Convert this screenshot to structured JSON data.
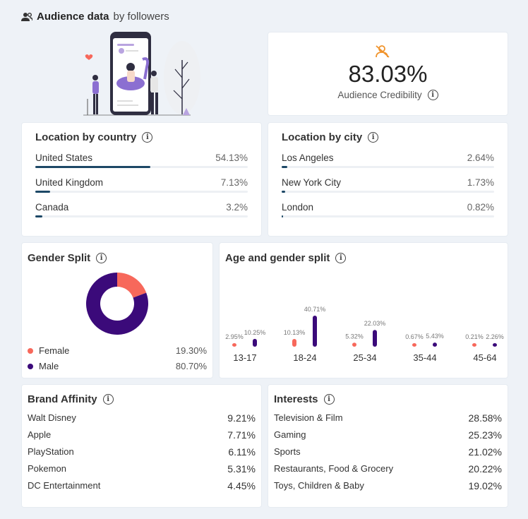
{
  "header": {
    "title": "Audience data",
    "subtitle": "by followers"
  },
  "credibility": {
    "value": "83.03%",
    "label": "Audience Credibility"
  },
  "location_country": {
    "title": "Location by country",
    "items": [
      {
        "label": "United States",
        "pct": "54.13%",
        "value": 54.13
      },
      {
        "label": "United Kingdom",
        "pct": "7.13%",
        "value": 7.13
      },
      {
        "label": "Canada",
        "pct": "3.2%",
        "value": 3.2
      }
    ]
  },
  "location_city": {
    "title": "Location by city",
    "items": [
      {
        "label": "Los Angeles",
        "pct": "2.64%",
        "value": 2.64
      },
      {
        "label": "New York City",
        "pct": "1.73%",
        "value": 1.73
      },
      {
        "label": "London",
        "pct": "0.82%",
        "value": 0.82
      }
    ]
  },
  "gender": {
    "title": "Gender Split",
    "items": [
      {
        "label": "Female",
        "pct": "19.30%",
        "value": 19.3,
        "color": "#f7685b"
      },
      {
        "label": "Male",
        "pct": "80.70%",
        "value": 80.7,
        "color": "#3b0a7a"
      }
    ]
  },
  "chart_data": {
    "type": "bar",
    "title": "Age and gender split",
    "categories": [
      "13-17",
      "18-24",
      "25-34",
      "35-44",
      "45-64"
    ],
    "series": [
      {
        "name": "Female",
        "color": "#f7685b",
        "values": [
          2.95,
          10.13,
          5.32,
          0.67,
          0.21
        ],
        "labels": [
          "2.95%",
          "10.13%",
          "5.32%",
          "0.67%",
          "0.21%"
        ]
      },
      {
        "name": "Male",
        "color": "#3b0a7a",
        "values": [
          10.25,
          40.71,
          22.03,
          5.43,
          2.26
        ],
        "labels": [
          "10.25%",
          "40.71%",
          "22.03%",
          "5.43%",
          "2.26%"
        ]
      }
    ],
    "ylim": [
      0,
      40.71
    ]
  },
  "brand_affinity": {
    "title": "Brand Affinity",
    "items": [
      {
        "label": "Walt Disney",
        "pct": "9.21%"
      },
      {
        "label": "Apple",
        "pct": "7.71%"
      },
      {
        "label": "PlayStation",
        "pct": "6.11%"
      },
      {
        "label": "Pokemon",
        "pct": "5.31%"
      },
      {
        "label": "DC Entertainment",
        "pct": "4.45%"
      }
    ]
  },
  "interests": {
    "title": "Interests",
    "items": [
      {
        "label": "Television & Film",
        "pct": "28.58%"
      },
      {
        "label": "Gaming",
        "pct": "25.23%"
      },
      {
        "label": "Sports",
        "pct": "21.02%"
      },
      {
        "label": "Restaurants, Food & Grocery",
        "pct": "20.22%"
      },
      {
        "label": "Toys, Children & Baby",
        "pct": "19.02%"
      }
    ]
  }
}
